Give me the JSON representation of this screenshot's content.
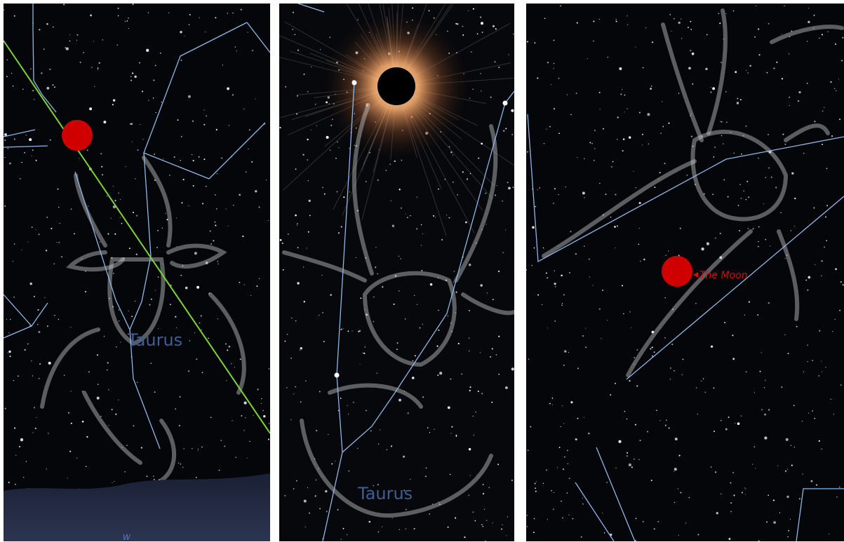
{
  "panels": [
    {
      "label": "Taurus",
      "compass": "W"
    },
    {
      "label": "Taurus"
    },
    {
      "label": "The Moon"
    }
  ]
}
